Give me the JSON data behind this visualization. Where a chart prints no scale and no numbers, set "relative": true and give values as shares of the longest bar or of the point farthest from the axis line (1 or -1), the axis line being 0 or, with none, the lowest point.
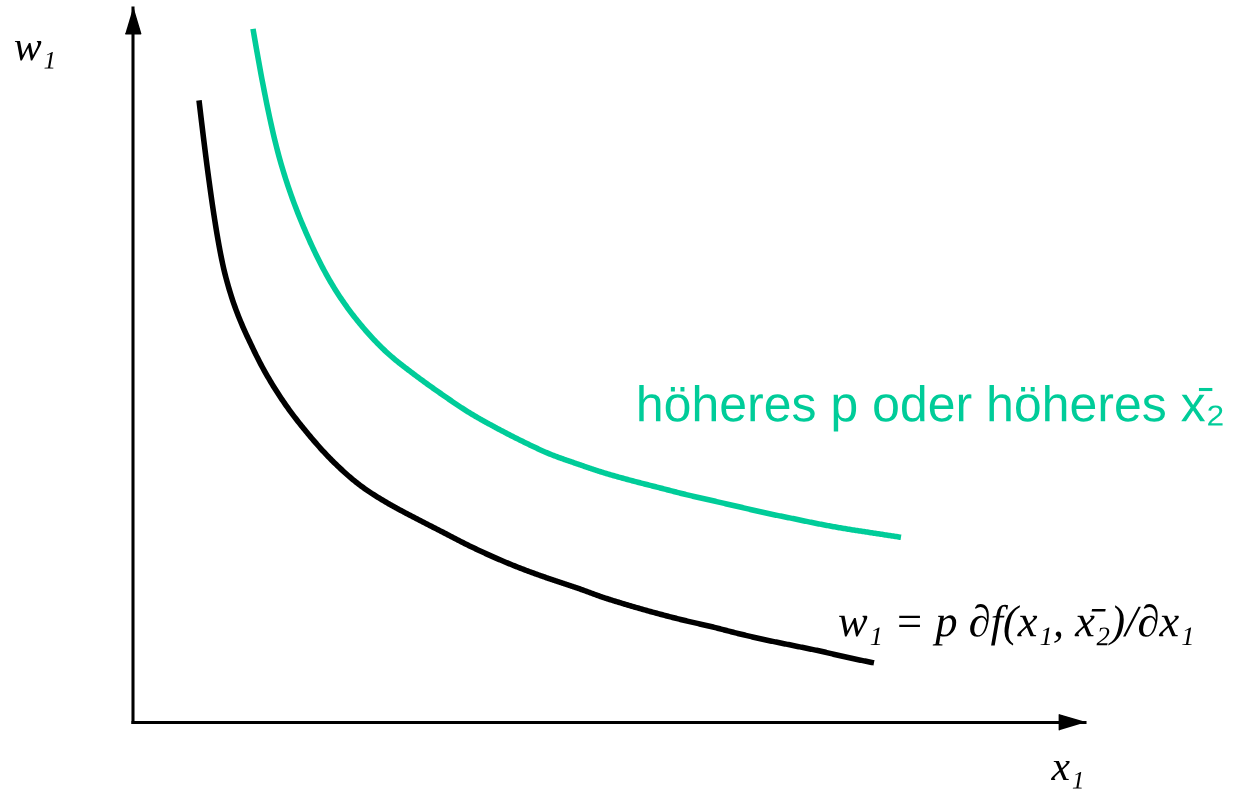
{
  "chart_data": {
    "type": "line",
    "relative": true,
    "xlabel": "x₁",
    "ylabel": "w₁",
    "categories": [
      null,
      null,
      null,
      null,
      null,
      null,
      null,
      null,
      null,
      null,
      null,
      null,
      null,
      null,
      null,
      null,
      null,
      null,
      null,
      null,
      null,
      null,
      null,
      null,
      null,
      null,
      null
    ],
    "series": [
      {
        "name": "w₁ = p ∂f(x₁, x̄₂)/∂x₁",
        "color": "#000000",
        "values": [
          0.897,
          0.641,
          0.539,
          0.47,
          0.418,
          0.375,
          0.341,
          0.316,
          0.295,
          0.275,
          0.255,
          0.237,
          0.221,
          0.207,
          0.194,
          0.18,
          0.168,
          0.157,
          0.147,
          0.138,
          0.128,
          0.119,
          0.111,
          0.103,
          0.094,
          0.086,
          null
        ]
      },
      {
        "name": "höheres p oder höheres x̄₂",
        "color": "#00cc99",
        "values": [
          null,
          null,
          1.0,
          0.811,
          0.703,
          0.627,
          0.573,
          0.532,
          0.501,
          0.473,
          0.447,
          0.425,
          0.405,
          0.387,
          0.373,
          0.36,
          0.349,
          0.339,
          0.329,
          0.32,
          0.311,
          0.302,
          0.294,
          0.286,
          0.279,
          0.273,
          0.267
        ]
      }
    ]
  }
}
